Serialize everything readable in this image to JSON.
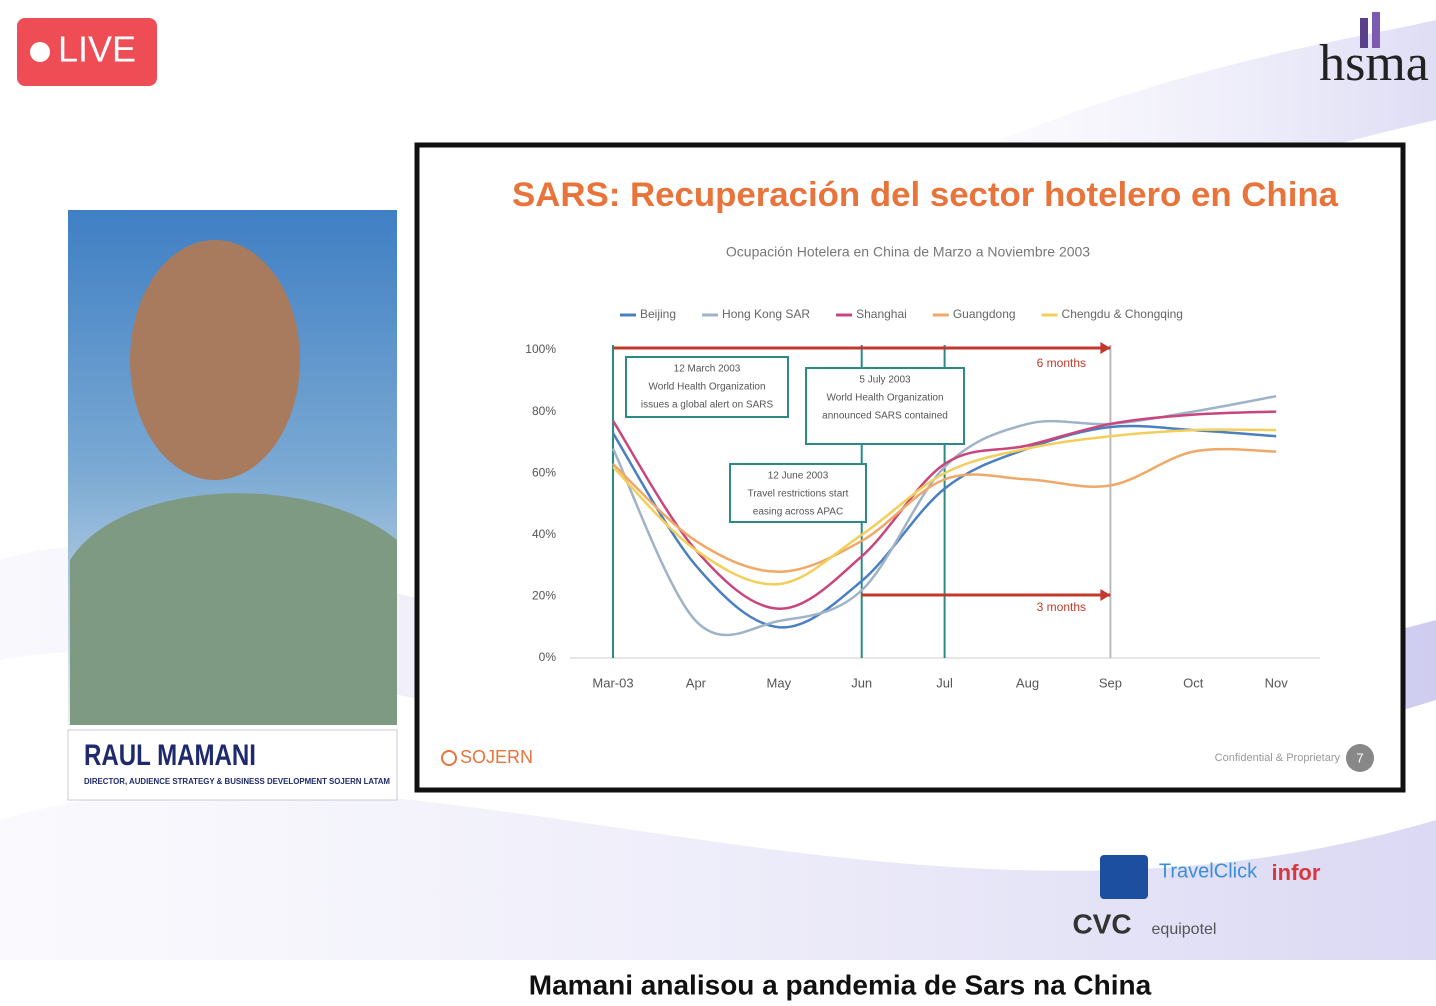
{
  "live_badge": "LIVE",
  "logo": "hsma",
  "speaker": {
    "name": "RAUL MAMANI",
    "role": "DIRECTOR, AUDIENCE STRATEGY & BUSINESS DEVELOPMENT SOJERN LATAM"
  },
  "slide": {
    "brand": "SOJERN",
    "footer": "Confidential & Proprietary",
    "page": "7"
  },
  "sponsors": [
    "TravelClick",
    "infor",
    "CVC",
    "equipotel"
  ],
  "caption": "Mamani analisou a pandemia de Sars na China",
  "chart_data": {
    "type": "line",
    "title": "SARS: Recuperación del sector hotelero en China",
    "subtitle": "Ocupación Hotelera en China de Marzo a Noviembre 2003",
    "categories": [
      "Mar-03",
      "Apr",
      "May",
      "Jun",
      "Jul",
      "Aug",
      "Sep",
      "Oct",
      "Nov"
    ],
    "series": [
      {
        "name": "Beijing",
        "color": "#4a7fc1",
        "values": [
          73,
          30,
          10,
          25,
          55,
          68,
          75,
          74,
          72
        ]
      },
      {
        "name": "Hong Kong SAR",
        "color": "#9fb3c8",
        "values": [
          68,
          12,
          12,
          22,
          62,
          76,
          76,
          80,
          85
        ]
      },
      {
        "name": "Shanghai",
        "color": "#c8457e",
        "values": [
          77,
          35,
          16,
          33,
          63,
          69,
          76,
          79,
          80
        ]
      },
      {
        "name": "Guangdong",
        "color": "#f0a868",
        "values": [
          63,
          38,
          28,
          38,
          58,
          58,
          56,
          67,
          67
        ]
      },
      {
        "name": "Chengdu & Chongqing",
        "color": "#f2cf5b",
        "values": [
          62,
          35,
          24,
          40,
          60,
          68,
          72,
          74,
          74
        ]
      }
    ],
    "ylim": [
      0,
      100
    ],
    "yticks": [
      {
        "value": 0,
        "label": "0%"
      },
      {
        "value": 20,
        "label": "20%"
      },
      {
        "value": 40,
        "label": "40%"
      },
      {
        "value": 60,
        "label": "60%"
      },
      {
        "value": 80,
        "label": "80%"
      },
      {
        "value": 100,
        "label": "100%"
      }
    ],
    "grid": false,
    "annotations": [
      {
        "lines": [
          "12 March 2003",
          "World Health Organization",
          "issues a global alert on SARS"
        ]
      },
      {
        "lines": [
          "12 June 2003",
          "Travel restrictions start",
          "easing across APAC"
        ]
      },
      {
        "lines": [
          "5 July 2003",
          "World Health Organization",
          "announced SARS contained"
        ]
      },
      {
        "lines": [
          "6 months"
        ]
      },
      {
        "lines": [
          "3 months"
        ]
      }
    ]
  }
}
